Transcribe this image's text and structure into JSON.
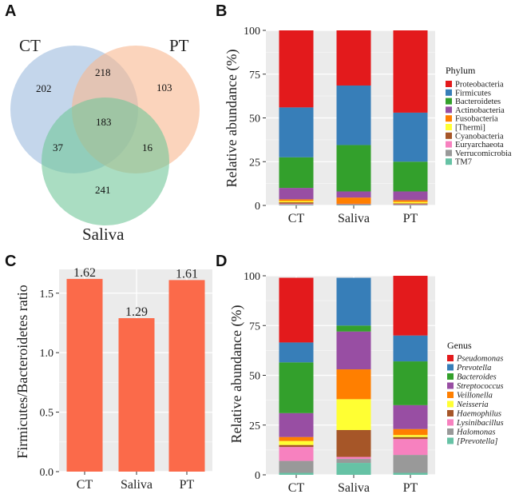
{
  "panels": {
    "A": "A",
    "B": "B",
    "C": "C",
    "D": "D"
  },
  "venn": {
    "sets": [
      "CT",
      "PT",
      "Saliva"
    ],
    "colors": [
      "#9dbbdd",
      "#f8b88f",
      "#72c79a"
    ],
    "regions": {
      "ct_only": "202",
      "ct_pt": "218",
      "pt_only": "103",
      "all": "183",
      "ct_saliva": "37",
      "pt_saliva": "16",
      "saliva_only": "241"
    }
  },
  "chart_data": [
    {
      "panel": "B",
      "type": "bar",
      "stacked": true,
      "ylabel": "Relative abundance (%)",
      "xlabel": "",
      "ylim": [
        0,
        100
      ],
      "yticks": [
        "0",
        "25",
        "50",
        "75",
        "100"
      ],
      "categories": [
        "CT",
        "Saliva",
        "PT"
      ],
      "legend_title": "Phylum",
      "legend_italic": false,
      "series": [
        {
          "name": "Proteobacteria",
          "color": "#e31a1c",
          "values": [
            44,
            31.5,
            47
          ]
        },
        {
          "name": "Firmicutes",
          "color": "#377eb8",
          "values": [
            28.5,
            34,
            28
          ]
        },
        {
          "name": "Bacteroidetes",
          "color": "#33a02c",
          "values": [
            17.5,
            26.5,
            17
          ]
        },
        {
          "name": "Actinobacteria",
          "color": "#984ea3",
          "values": [
            6.5,
            3.5,
            5
          ]
        },
        {
          "name": "Fusobacteria",
          "color": "#ff7f00",
          "values": [
            1,
            3.5,
            1
          ]
        },
        {
          "name": "[Thermi]",
          "color": "#ffff33",
          "values": [
            0.7,
            0,
            0.8
          ]
        },
        {
          "name": "Cyanobacteria",
          "color": "#a65628",
          "values": [
            0.8,
            0.3,
            0.5
          ]
        },
        {
          "name": "Euryarchaeota",
          "color": "#f781bf",
          "values": [
            0.4,
            0.2,
            0.3
          ]
        },
        {
          "name": "Verrucomicrobia",
          "color": "#999999",
          "values": [
            0.3,
            0.2,
            0.2
          ]
        },
        {
          "name": "TM7",
          "color": "#66c2a5",
          "values": [
            0.3,
            0.3,
            0.2
          ]
        }
      ]
    },
    {
      "panel": "C",
      "type": "bar",
      "stacked": false,
      "ylabel": "Firmicutes/Bacteroidetes ratio",
      "xlabel": "",
      "ylim": [
        0,
        1.7
      ],
      "yticks": [
        "0.0",
        "0.5",
        "1.0",
        "1.5"
      ],
      "categories": [
        "CT",
        "Saliva",
        "PT"
      ],
      "values": [
        1.62,
        1.29,
        1.61
      ],
      "data_labels": [
        "1.62",
        "1.29",
        "1.61"
      ],
      "color": "#fb6a4a"
    },
    {
      "panel": "D",
      "type": "bar",
      "stacked": true,
      "ylabel": "Relative abundance (%)",
      "xlabel": "",
      "ylim": [
        0,
        100
      ],
      "yticks": [
        "0",
        "25",
        "50",
        "75",
        "100"
      ],
      "categories": [
        "CT",
        "Saliva",
        "PT"
      ],
      "legend_title": "Genus",
      "legend_italic": true,
      "series": [
        {
          "name": "Pseudomonas",
          "color": "#e31a1c",
          "values": [
            32.5,
            0,
            30
          ]
        },
        {
          "name": "Prevotella",
          "color": "#377eb8",
          "values": [
            10,
            24,
            13
          ]
        },
        {
          "name": "Bacteroides",
          "color": "#33a02c",
          "values": [
            25.5,
            3,
            22
          ]
        },
        {
          "name": "Streptococcus",
          "color": "#984ea3",
          "values": [
            12,
            19,
            12
          ]
        },
        {
          "name": "Veillonella",
          "color": "#ff7f00",
          "values": [
            2,
            15,
            3
          ]
        },
        {
          "name": "Neisseria",
          "color": "#ffff33",
          "values": [
            2,
            15.5,
            1
          ]
        },
        {
          "name": "Haemophilus",
          "color": "#a65628",
          "values": [
            1,
            13.5,
            1
          ]
        },
        {
          "name": "Lysinibacillus",
          "color": "#f781bf",
          "values": [
            7,
            1,
            8
          ]
        },
        {
          "name": "Halomonas",
          "color": "#999999",
          "values": [
            6,
            2,
            9
          ]
        },
        {
          "name": "[Prevotella]",
          "color": "#66c2a5",
          "values": [
            1,
            6,
            1
          ]
        }
      ]
    }
  ]
}
